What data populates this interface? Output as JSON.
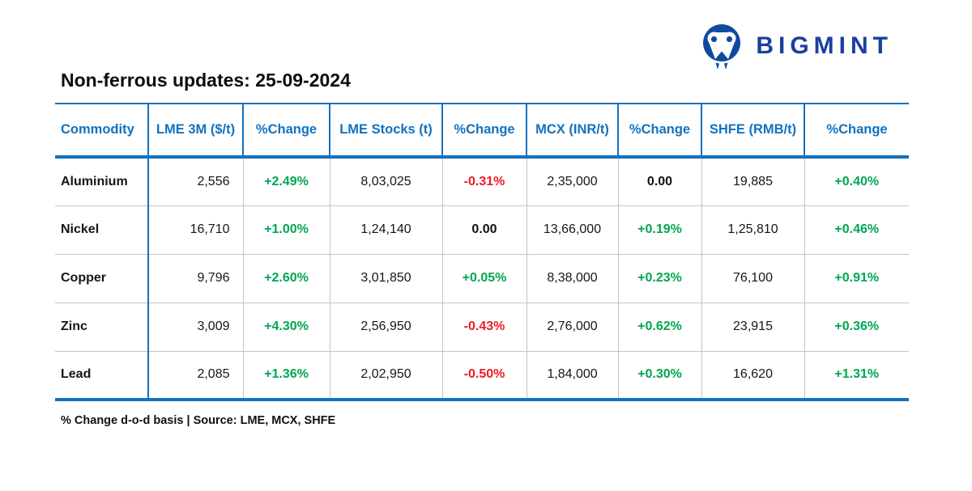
{
  "brand": {
    "name": "BIGMINT",
    "icon": "bigmint-elephant-icon",
    "text_color": "#1b3fa0",
    "icon_color": "#0f4aa0"
  },
  "title": "Non-ferrous updates: 25-09-2024",
  "table": {
    "columns": [
      {
        "label": "Commodity",
        "key": "commodity",
        "type": "label"
      },
      {
        "label": "LME 3M ($/t)",
        "key": "lme_3m",
        "type": "number"
      },
      {
        "label": "%Change",
        "key": "lme_3m_change",
        "type": "change"
      },
      {
        "label": "LME Stocks (t)",
        "key": "lme_stocks",
        "type": "number"
      },
      {
        "label": "%Change",
        "key": "lme_stocks_change",
        "type": "change"
      },
      {
        "label": "MCX (INR/t)",
        "key": "mcx",
        "type": "number"
      },
      {
        "label": "%Change",
        "key": "mcx_change",
        "type": "change"
      },
      {
        "label": "SHFE (RMB/t)",
        "key": "shfe",
        "type": "number"
      },
      {
        "label": "%Change",
        "key": "shfe_change",
        "type": "change"
      }
    ],
    "rows": [
      {
        "commodity": "Aluminium",
        "lme_3m": "2,556",
        "lme_3m_change": "+2.49%",
        "lme_stocks": "8,03,025",
        "lme_stocks_change": "-0.31%",
        "mcx": "2,35,000",
        "mcx_change": "0.00",
        "shfe": "19,885",
        "shfe_change": "+0.40%"
      },
      {
        "commodity": "Nickel",
        "lme_3m": "16,710",
        "lme_3m_change": "+1.00%",
        "lme_stocks": "1,24,140",
        "lme_stocks_change": "0.00",
        "mcx": "13,66,000",
        "mcx_change": "+0.19%",
        "shfe": "1,25,810",
        "shfe_change": "+0.46%"
      },
      {
        "commodity": "Copper",
        "lme_3m": "9,796",
        "lme_3m_change": "+2.60%",
        "lme_stocks": "3,01,850",
        "lme_stocks_change": "+0.05%",
        "mcx": "8,38,000",
        "mcx_change": "+0.23%",
        "shfe": "76,100",
        "shfe_change": "+0.91%"
      },
      {
        "commodity": "Zinc",
        "lme_3m": "3,009",
        "lme_3m_change": "+4.30%",
        "lme_stocks": "2,56,950",
        "lme_stocks_change": "-0.43%",
        "mcx": "2,76,000",
        "mcx_change": "+0.62%",
        "shfe": "23,915",
        "shfe_change": "+0.36%"
      },
      {
        "commodity": "Lead",
        "lme_3m": "2,085",
        "lme_3m_change": "+1.36%",
        "lme_stocks": "2,02,950",
        "lme_stocks_change": "-0.50%",
        "mcx": "1,84,000",
        "mcx_change": "+0.30%",
        "shfe": "16,620",
        "shfe_change": "+1.31%"
      }
    ]
  },
  "footnote": "% Change d-o-d basis | Source: LME, MCX, SHFE",
  "colors": {
    "header_blue": "#1272bf",
    "positive_green": "#00a651",
    "negative_red": "#ec1c24",
    "neutral_black": "#111111",
    "gridline_gray": "#c4c4c4"
  },
  "chart_data": {
    "type": "table",
    "title": "Non-ferrous updates: 25-09-2024",
    "columns": [
      "Commodity",
      "LME 3M ($/t)",
      "%Change",
      "LME Stocks (t)",
      "%Change",
      "MCX (INR/t)",
      "%Change",
      "SHFE (RMB/t)",
      "%Change"
    ],
    "rows": [
      [
        "Aluminium",
        "2,556",
        "+2.49%",
        "8,03,025",
        "-0.31%",
        "2,35,000",
        "0.00",
        "19,885",
        "+0.40%"
      ],
      [
        "Nickel",
        "16,710",
        "+1.00%",
        "1,24,140",
        "0.00",
        "13,66,000",
        "+0.19%",
        "1,25,810",
        "+0.46%"
      ],
      [
        "Copper",
        "9,796",
        "+2.60%",
        "3,01,850",
        "+0.05%",
        "8,38,000",
        "+0.23%",
        "76,100",
        "+0.91%"
      ],
      [
        "Zinc",
        "3,009",
        "+4.30%",
        "2,56,950",
        "-0.43%",
        "2,76,000",
        "+0.62%",
        "23,915",
        "+0.36%"
      ],
      [
        "Lead",
        "2,085",
        "+1.36%",
        "2,02,950",
        "-0.50%",
        "1,84,000",
        "+0.30%",
        "16,620",
        "+1.31%"
      ]
    ],
    "footnote": "% Change d-o-d basis | Source: LME, MCX, SHFE"
  }
}
